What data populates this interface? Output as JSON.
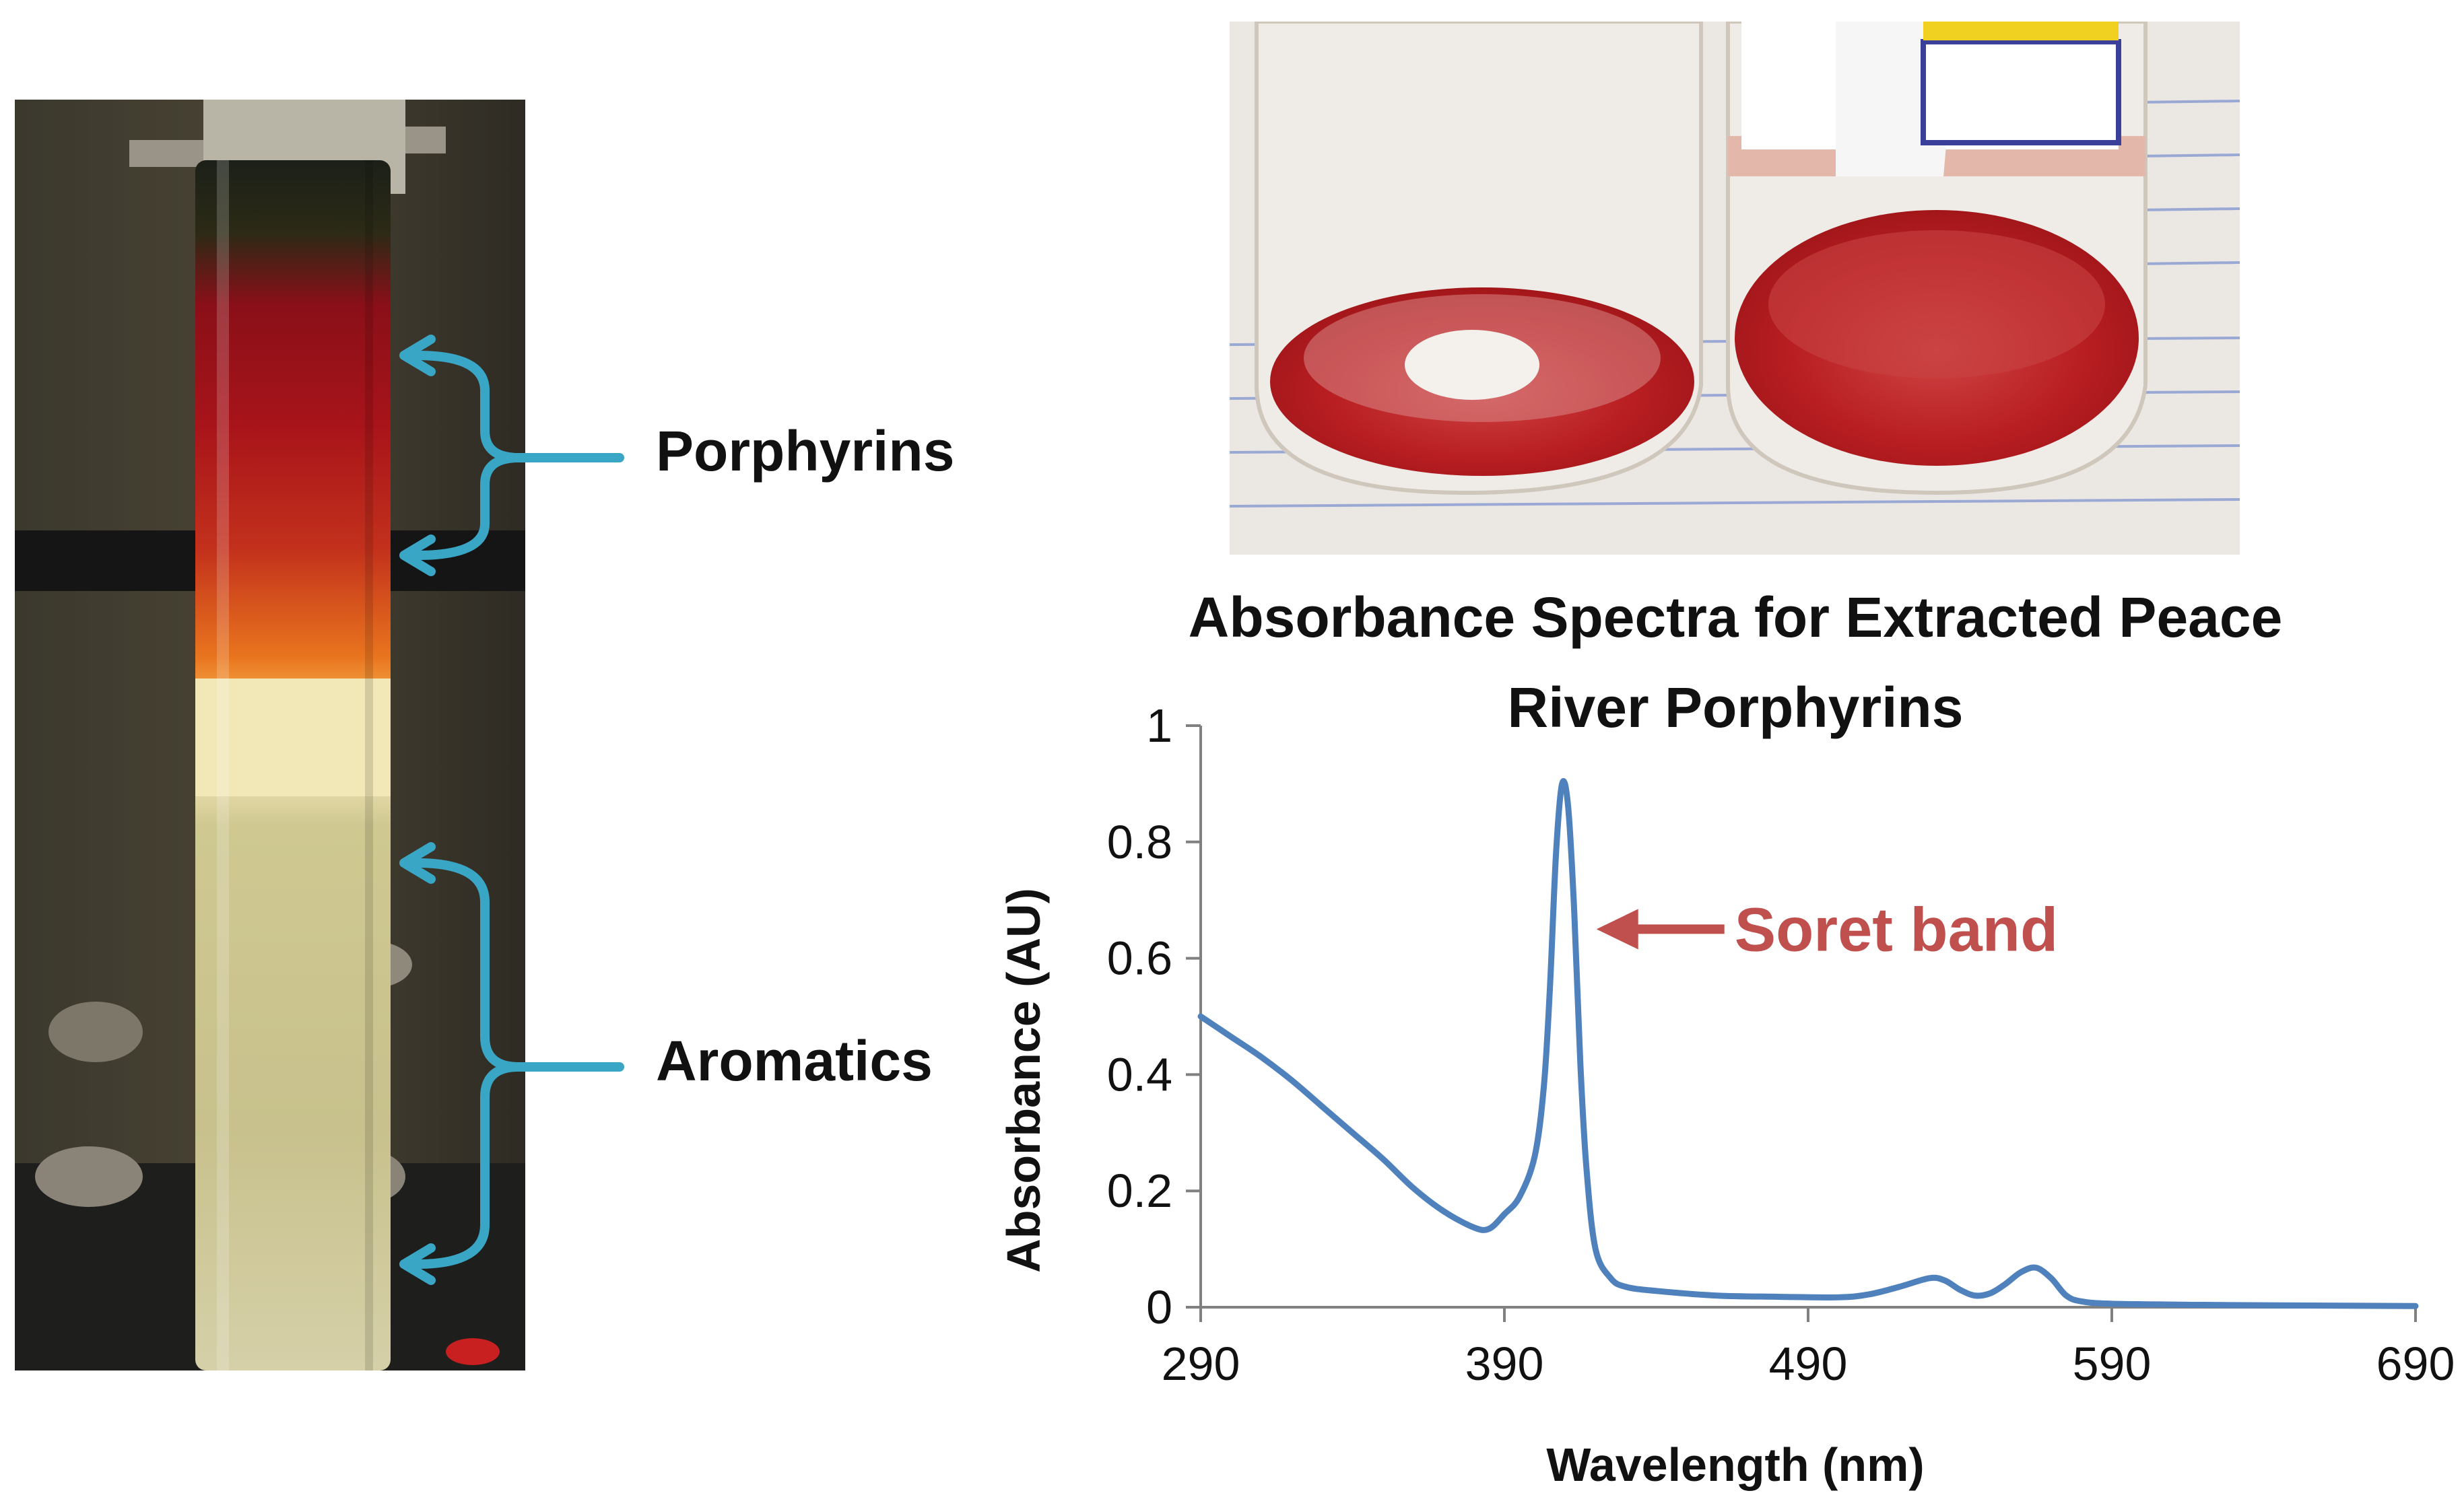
{
  "labels": {
    "porphyrins": "Porphyrins",
    "aromatics": "Aromatics"
  },
  "colors": {
    "bracket": "#3aa6c6",
    "series": "#4f81bd",
    "annotation": "#c0504d"
  },
  "chart_data": {
    "type": "line",
    "title_lines": [
      "Absorbance Spectra for Extracted Peace",
      "River Porphyrins"
    ],
    "xlabel": "Wavelength (nm)",
    "ylabel": "Absorbance (AU)",
    "xlim": [
      290,
      690
    ],
    "ylim": [
      0,
      1
    ],
    "xticks": [
      "290",
      "390",
      "490",
      "590",
      "690"
    ],
    "yticks": [
      "0",
      "0.2",
      "0.4",
      "0.6",
      "0.8",
      "1"
    ],
    "grid": false,
    "series": [
      {
        "x": [
          290,
          300,
          310,
          320,
          330,
          340,
          350,
          360,
          370,
          380,
          385,
          390,
          395,
          400,
          403,
          405,
          407,
          409,
          411,
          413,
          415,
          417,
          420,
          425,
          430,
          440,
          460,
          480,
          500,
          510,
          520,
          530,
          535,
          540,
          545,
          550,
          555,
          560,
          565,
          570,
          575,
          580,
          590,
          620,
          650,
          690
        ],
        "y": [
          0.5,
          0.465,
          0.43,
          0.39,
          0.345,
          0.3,
          0.255,
          0.205,
          0.165,
          0.137,
          0.135,
          0.16,
          0.19,
          0.26,
          0.38,
          0.55,
          0.78,
          0.9,
          0.86,
          0.68,
          0.42,
          0.24,
          0.1,
          0.05,
          0.035,
          0.028,
          0.02,
          0.018,
          0.017,
          0.022,
          0.035,
          0.05,
          0.046,
          0.03,
          0.02,
          0.024,
          0.04,
          0.06,
          0.068,
          0.05,
          0.02,
          0.01,
          0.006,
          0.004,
          0.003,
          0.002
        ]
      }
    ],
    "annotation": {
      "text": "Soret band",
      "x": 411,
      "y": 0.65
    }
  }
}
